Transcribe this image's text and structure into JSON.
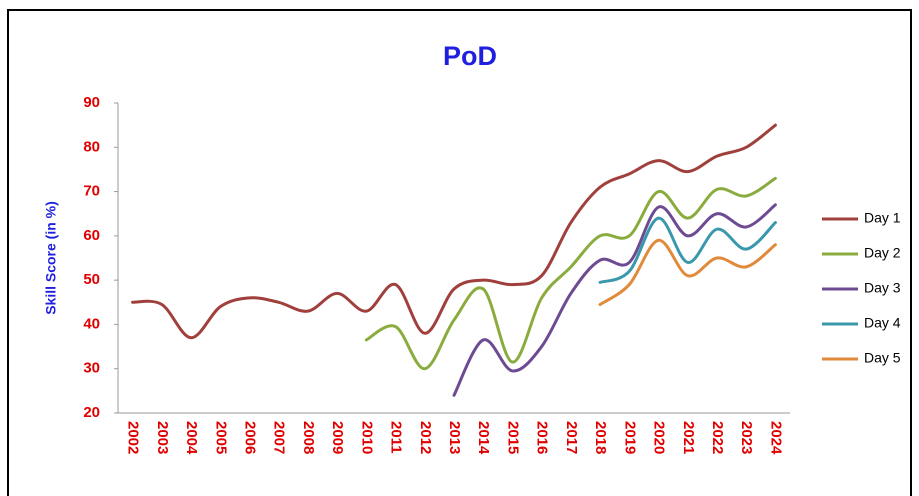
{
  "chart_data": {
    "type": "line",
    "title": "PoD",
    "y_label": "Skill Score (in %)",
    "categories": [
      "2002",
      "2003",
      "2004",
      "2005",
      "2006",
      "2007",
      "2008",
      "2009",
      "2010",
      "2011",
      "2012",
      "2013",
      "2014",
      "2015",
      "2016",
      "2017",
      "2018",
      "2019",
      "2020",
      "2021",
      "2022",
      "2023",
      "2024"
    ],
    "series": [
      {
        "name": "Day 1",
        "color": "#a0403d",
        "values": [
          45,
          44.5,
          37,
          44,
          46,
          45,
          43,
          47,
          43,
          49,
          38,
          48,
          50,
          49,
          51,
          63,
          71,
          74,
          77,
          74.5,
          78,
          80,
          85
        ]
      },
      {
        "name": "Day 2",
        "color": "#8aac3e",
        "values": [
          null,
          null,
          null,
          null,
          null,
          null,
          null,
          null,
          36.5,
          39.5,
          30,
          41,
          48,
          31.5,
          46,
          53,
          60,
          60,
          70,
          64,
          70.5,
          69,
          73
        ]
      },
      {
        "name": "Day 3",
        "color": "#6e4a92",
        "values": [
          null,
          null,
          null,
          null,
          null,
          null,
          null,
          null,
          null,
          null,
          null,
          24,
          36.5,
          29.5,
          35,
          47,
          54.5,
          54,
          66.5,
          60,
          65,
          62,
          67
        ]
      },
      {
        "name": "Day 4",
        "color": "#3a98ad",
        "values": [
          null,
          null,
          null,
          null,
          null,
          null,
          null,
          null,
          null,
          null,
          null,
          null,
          null,
          null,
          null,
          null,
          49.5,
          52,
          64,
          54,
          61.5,
          57,
          63
        ]
      },
      {
        "name": "Day 5",
        "color": "#e08a3c",
        "values": [
          null,
          null,
          null,
          null,
          null,
          null,
          null,
          null,
          null,
          null,
          null,
          null,
          null,
          null,
          null,
          null,
          44.5,
          49,
          59,
          51,
          55,
          53,
          58
        ]
      }
    ],
    "ylim": [
      20,
      90
    ],
    "yticks": [
      20,
      30,
      40,
      50,
      60,
      70,
      80,
      90
    ],
    "grid": false,
    "legend": "right"
  }
}
